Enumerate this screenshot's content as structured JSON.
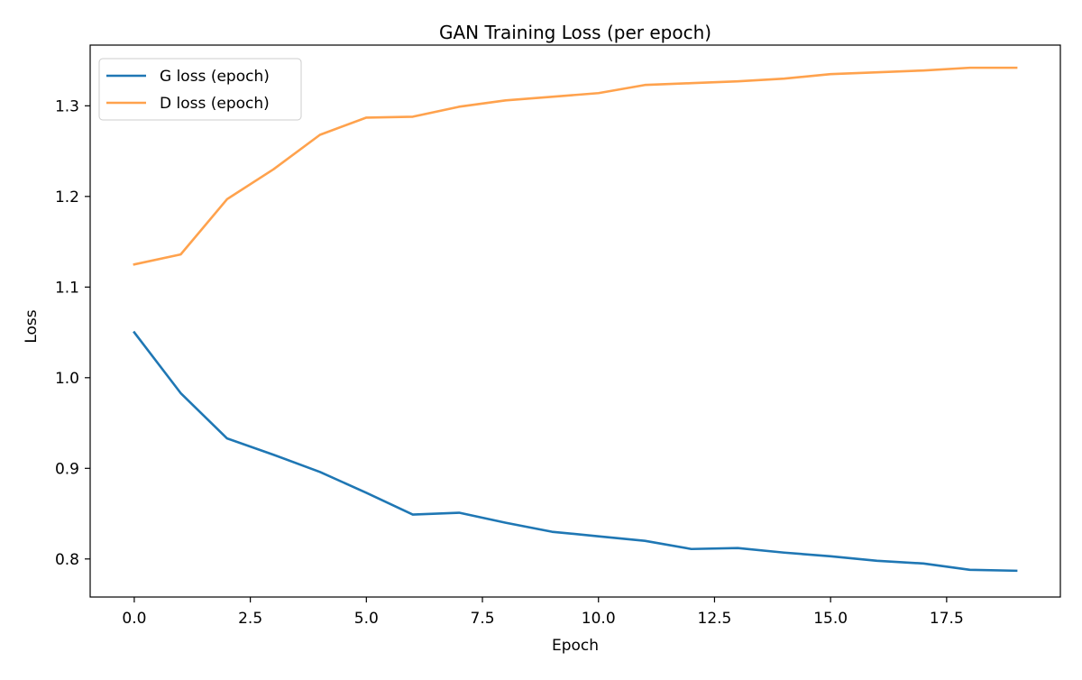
{
  "chart_data": {
    "type": "line",
    "title": "GAN Training Loss (per epoch)",
    "xlabel": "Epoch",
    "ylabel": "Loss",
    "xlim": [
      -0.95,
      19.95
    ],
    "ylim": [
      0.758,
      1.367
    ],
    "xticks": [
      0.0,
      2.5,
      5.0,
      7.5,
      10.0,
      12.5,
      15.0,
      17.5
    ],
    "xtick_labels": [
      "0.0",
      "2.5",
      "5.0",
      "7.5",
      "10.0",
      "12.5",
      "15.0",
      "17.5"
    ],
    "yticks": [
      0.8,
      0.9,
      1.0,
      1.1,
      1.2,
      1.3
    ],
    "ytick_labels": [
      "0.8",
      "0.9",
      "1.0",
      "1.1",
      "1.2",
      "1.3"
    ],
    "grid": false,
    "legend_position": "top-left",
    "x": [
      0,
      1,
      2,
      3,
      4,
      5,
      6,
      7,
      8,
      9,
      10,
      11,
      12,
      13,
      14,
      15,
      16,
      17,
      18,
      19
    ],
    "series": [
      {
        "name": "G loss (epoch)",
        "color": "#1f77b4",
        "values": [
          1.05,
          0.983,
          0.933,
          0.915,
          0.896,
          0.873,
          0.849,
          0.851,
          0.84,
          0.83,
          0.825,
          0.82,
          0.811,
          0.812,
          0.807,
          0.803,
          0.798,
          0.795,
          0.788,
          0.787
        ]
      },
      {
        "name": "D loss (epoch)",
        "color": "#ffa24d",
        "values": [
          1.125,
          1.136,
          1.197,
          1.23,
          1.268,
          1.287,
          1.288,
          1.299,
          1.306,
          1.31,
          1.314,
          1.323,
          1.325,
          1.327,
          1.33,
          1.335,
          1.337,
          1.339,
          1.342,
          1.342
        ]
      }
    ]
  }
}
